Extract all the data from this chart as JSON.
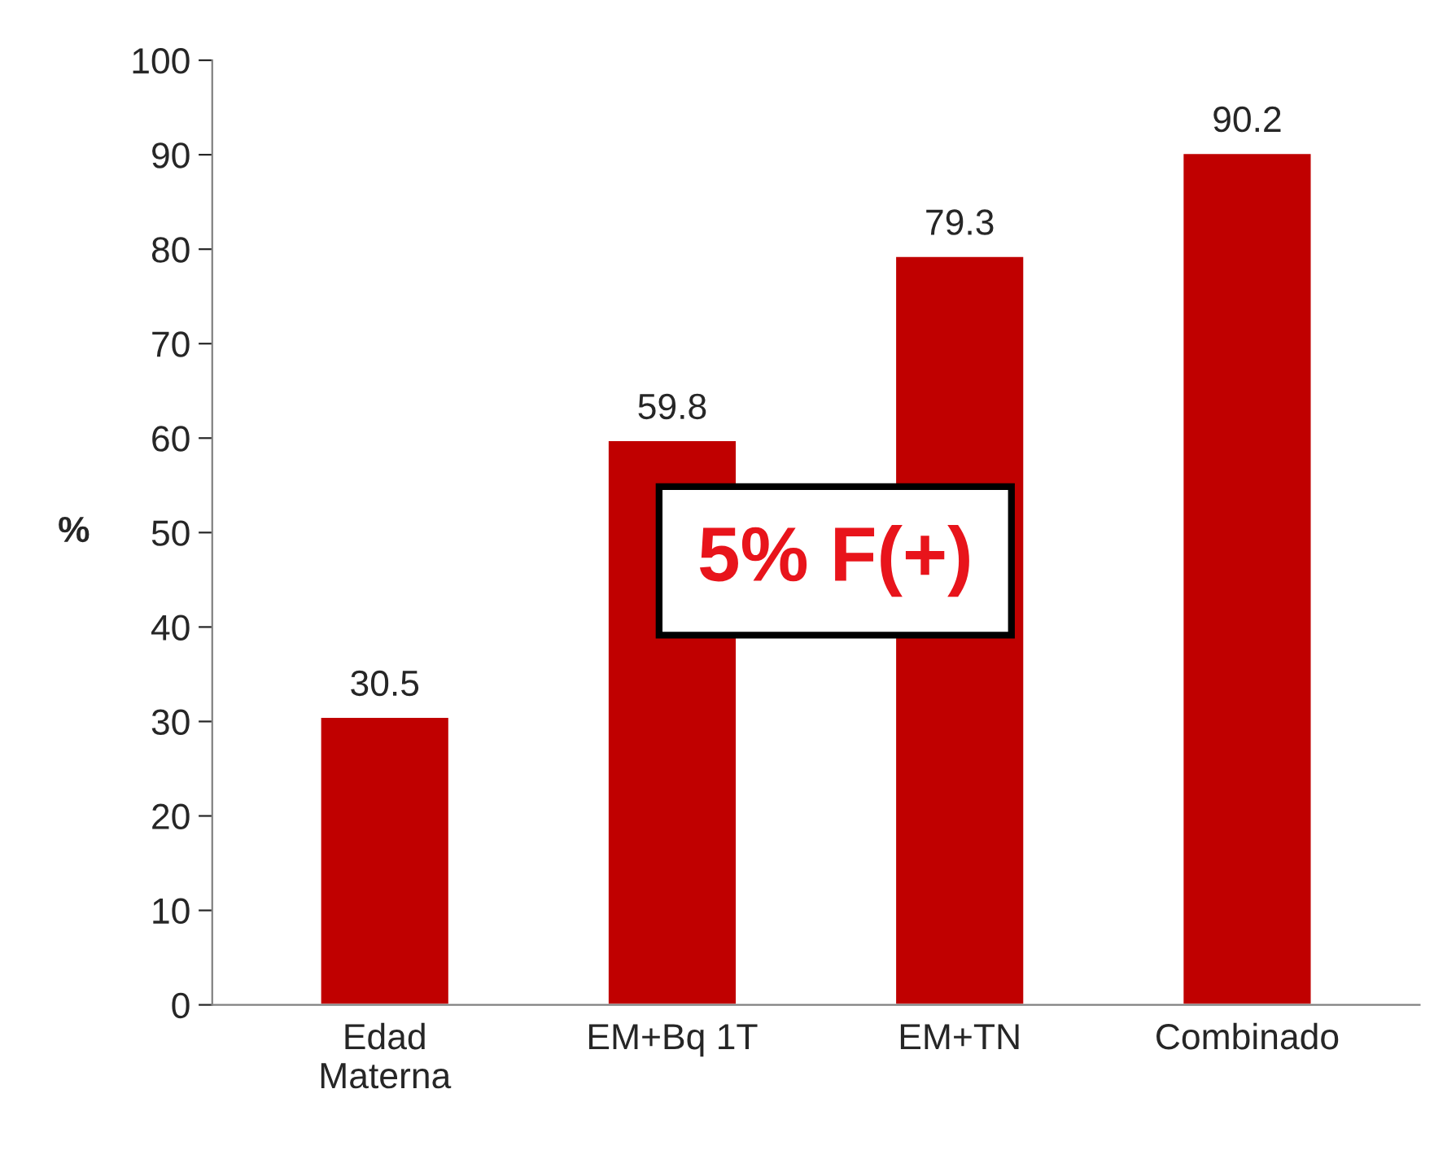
{
  "chart_data": {
    "type": "bar",
    "ylabel": "%",
    "categories": [
      "Edad\nMaterna",
      "EM+Bq 1T",
      "EM+TN",
      "Combinado"
    ],
    "values": [
      30.5,
      59.8,
      79.3,
      90.2
    ],
    "color": "#c00000",
    "ylim": [
      0,
      100
    ],
    "yticks": [
      0,
      10,
      20,
      30,
      40,
      50,
      60,
      70,
      80,
      90,
      100
    ],
    "data_labels": true,
    "grid": false,
    "legend": false,
    "annotations": [
      "5% F(+)"
    ]
  }
}
